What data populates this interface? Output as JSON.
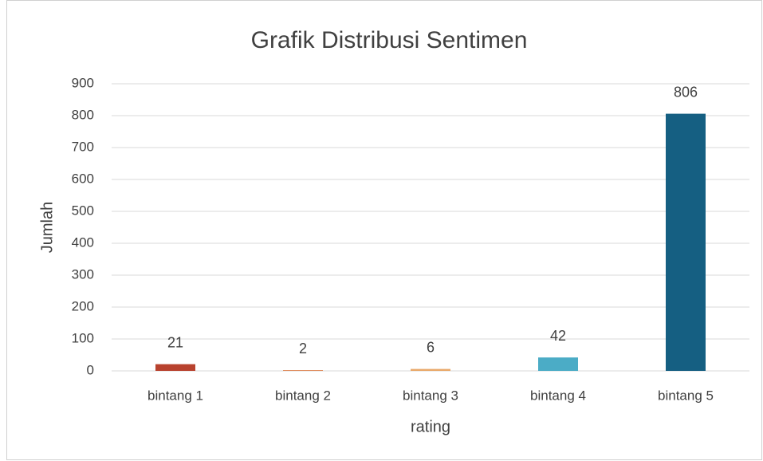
{
  "chart_data": {
    "type": "bar",
    "title": "Grafik Distribusi Sentimen",
    "x_label": "rating",
    "y_label": "Jumlah",
    "categories": [
      "bintang 1",
      "bintang 2",
      "bintang 3",
      "bintang 4",
      "bintang 5"
    ],
    "values": [
      21,
      2,
      6,
      42,
      806
    ],
    "colors": [
      "#b8422e",
      "#d9733a",
      "#e9a96a",
      "#4bacc6",
      "#155f82"
    ],
    "ylim": [
      0,
      900
    ],
    "yticks": [
      0,
      100,
      200,
      300,
      400,
      500,
      600,
      700,
      800,
      900
    ],
    "grid": true
  }
}
